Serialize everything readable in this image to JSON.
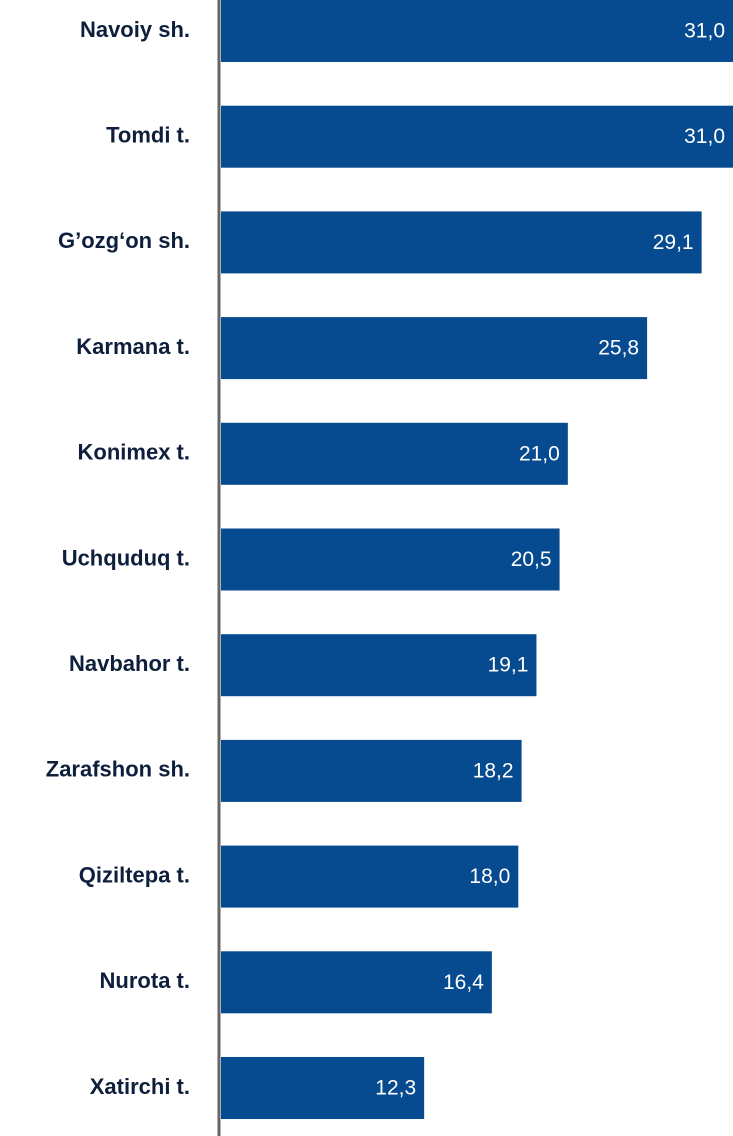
{
  "chart_data": {
    "type": "bar",
    "orientation": "horizontal",
    "categories": [
      "Navoiy sh.",
      "Tomdi t.",
      "G’ozg‘on sh.",
      "Karmana t.",
      "Konimex t.",
      "Uchquduq t.",
      "Navbahor t.",
      "Zarafshon sh.",
      "Qiziltepa t.",
      "Nurota t.",
      "Xatirchi t."
    ],
    "values": [
      31.0,
      31.0,
      29.1,
      25.8,
      21.0,
      20.5,
      19.1,
      18.2,
      18.0,
      16.4,
      12.3
    ],
    "value_labels": [
      "31,0",
      "31,0",
      "29,1",
      "25,8",
      "21,0",
      "20,5",
      "19,1",
      "18,2",
      "18,0",
      "16,4",
      "12,3"
    ],
    "color": "#064a8f",
    "xlim": [
      0,
      31
    ]
  }
}
